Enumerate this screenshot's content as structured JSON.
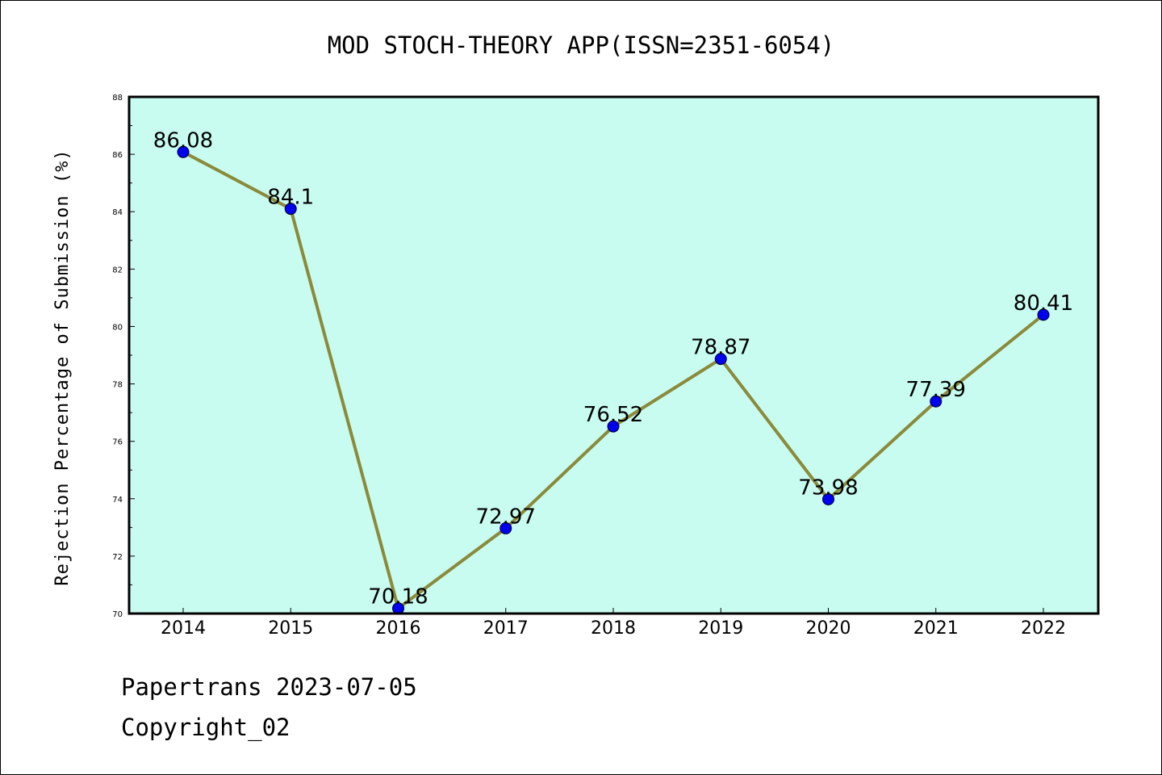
{
  "chart_data": {
    "type": "line",
    "title": "MOD STOCH-THEORY APP(ISSN=2351-6054)",
    "xlabel": "",
    "ylabel": "Rejection Percentage of Submission (%)",
    "categories": [
      "2014",
      "2015",
      "2016",
      "2017",
      "2018",
      "2019",
      "2020",
      "2021",
      "2022"
    ],
    "series": [
      {
        "values": [
          86.08,
          84.1,
          70.18,
          72.97,
          76.52,
          78.87,
          73.98,
          77.39,
          80.41
        ],
        "data_labels": [
          "86.08",
          "84.1",
          "70.18",
          "72.97",
          "76.52",
          "78.87",
          "73.98",
          "77.39",
          "80.41"
        ]
      }
    ],
    "ylim": [
      70,
      88
    ],
    "yticks": [
      "70",
      "72",
      "74",
      "76",
      "78",
      "80",
      "82",
      "84",
      "86",
      "88"
    ],
    "grid": false,
    "legend": "none",
    "colors": {
      "plot_background": "#c8fcf0",
      "line": "#8b8a3a",
      "marker": "#0000ee",
      "axes": "#000000"
    }
  },
  "footer": {
    "line1": "Papertrans 2023-07-05",
    "line2": "Copyright_02"
  }
}
